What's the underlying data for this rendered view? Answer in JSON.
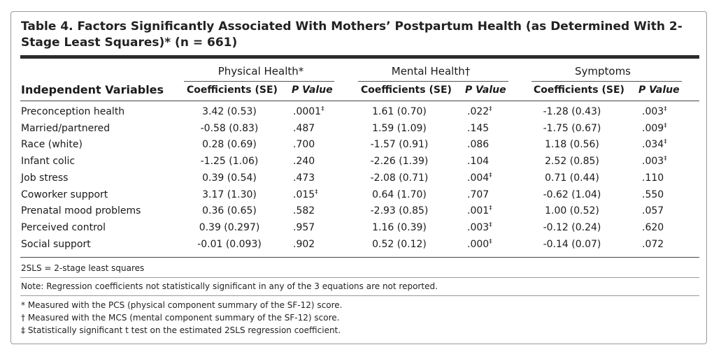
{
  "table": {
    "title": "Table 4. Factors Significantly Associated With Mothers’ Postpartum Health (as Determined With 2-Stage Least Squares)* (n = 661)",
    "groups": [
      "Physical Health*",
      "Mental Health†",
      "Symptoms"
    ],
    "independent_header": "Independent Variables",
    "coef_header": "Coefficients (SE)",
    "p_header": "P Value",
    "rows": [
      {
        "name": "Preconception health",
        "v": [
          "3.42 (0.53)",
          ".0001‡",
          "1.61 (0.70)",
          ".022‡",
          "-1.28 (0.43)",
          ".003‡"
        ]
      },
      {
        "name": "Married/partnered",
        "v": [
          "-0.58 (0.83)",
          ".487",
          "1.59 (1.09)",
          ".145",
          "-1.75 (0.67)",
          ".009‡"
        ]
      },
      {
        "name": "Race (white)",
        "v": [
          "0.28 (0.69)",
          ".700",
          "-1.57 (0.91)",
          ".086",
          "1.18 (0.56)",
          ".034‡"
        ]
      },
      {
        "name": "Infant colic",
        "v": [
          "-1.25 (1.06)",
          ".240",
          "-2.26 (1.39)",
          ".104",
          "2.52 (0.85)",
          ".003‡"
        ]
      },
      {
        "name": "Job stress",
        "v": [
          "0.39 (0.54)",
          ".473",
          "-2.08 (0.71)",
          ".004‡",
          "0.71 (0.44)",
          ".110"
        ]
      },
      {
        "name": "Coworker support",
        "v": [
          "3.17 (1.30)",
          ".015‡",
          "0.64 (1.70)",
          ".707",
          "-0.62 (1.04)",
          ".550"
        ]
      },
      {
        "name": "Prenatal mood problems",
        "v": [
          "0.36 (0.65)",
          ".582",
          "-2.93 (0.85)",
          ".001‡",
          "1.00 (0.52)",
          ".057"
        ]
      },
      {
        "name": "Perceived control",
        "v": [
          "0.39 (0.297)",
          ".957",
          "1.16 (0.39)",
          ".003‡",
          "-0.12 (0.24)",
          ".620"
        ]
      },
      {
        "name": "Social support",
        "v": [
          "-0.01 (0.093)",
          ".902",
          "0.52 (0.12)",
          ".000‡",
          "-0.14 (0.07)",
          ".072"
        ]
      }
    ]
  },
  "notes": {
    "abbrev": "2SLS = 2-stage least squares",
    "note": "Note: Regression coefficients not statistically significant in any of the 3 equations are not reported.",
    "star": "* Measured with the PCS (physical component summary of the SF-12) score.",
    "dagger": "† Measured with the MCS (mental component summary of the SF-12) score.",
    "ddagger": "‡ Statistically significant t test on the estimated 2SLS regression coefficient."
  }
}
